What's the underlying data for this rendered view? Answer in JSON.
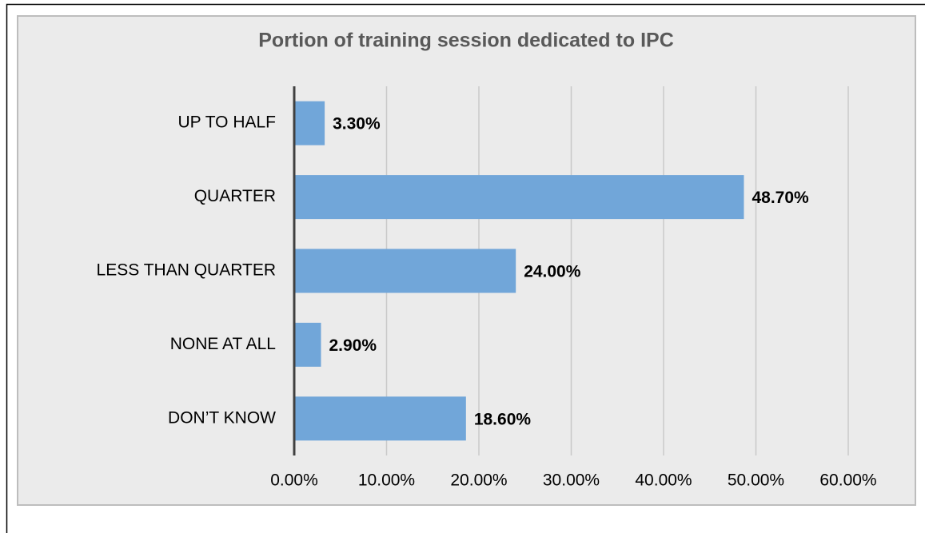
{
  "chart_data": {
    "type": "bar",
    "orientation": "horizontal",
    "title": "Portion of training session dedicated to IPC",
    "categories": [
      "UP TO HALF",
      "QUARTER",
      "LESS THAN QUARTER",
      "NONE AT ALL",
      "DON’T KNOW"
    ],
    "values": [
      3.3,
      48.7,
      24.0,
      2.9,
      18.6
    ],
    "value_labels": [
      "3.30%",
      "48.70%",
      "24.00%",
      "2.90%",
      "18.60%"
    ],
    "color": "#71a6d9",
    "xlim": [
      0,
      60
    ],
    "xticks": [
      {
        "value": 0,
        "label": "0.00%"
      },
      {
        "value": 10,
        "label": "10.00%"
      },
      {
        "value": 20,
        "label": "20.00%"
      },
      {
        "value": 30,
        "label": "30.00%"
      },
      {
        "value": 40,
        "label": "40.00%"
      },
      {
        "value": 50,
        "label": "50.00%"
      },
      {
        "value": 60,
        "label": "60.00%"
      }
    ],
    "grid": true
  }
}
